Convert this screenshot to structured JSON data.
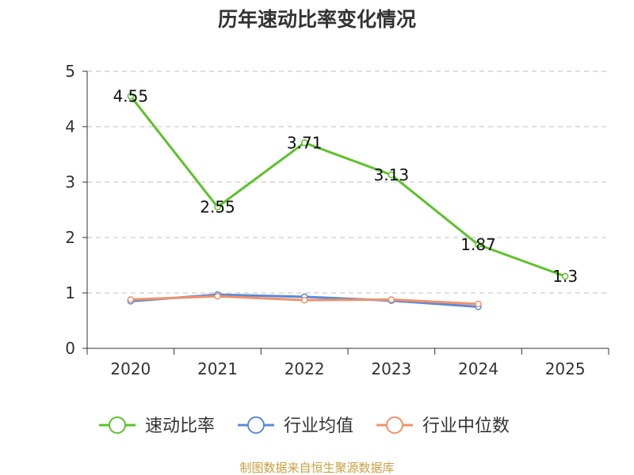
{
  "chart_data": {
    "type": "line",
    "title": "历年速动比率变化情况",
    "categories": [
      "2020",
      "2021",
      "2022",
      "2023",
      "2024",
      "2025"
    ],
    "ylim": [
      0,
      5
    ],
    "yticks": [
      0,
      1,
      2,
      3,
      4,
      5
    ],
    "grid": true,
    "legend_position": "bottom",
    "series": [
      {
        "name": "速动比率",
        "color": "#5cc22a",
        "values": [
          4.55,
          2.55,
          3.71,
          3.13,
          1.87,
          1.3
        ],
        "show_labels": true
      },
      {
        "name": "行业均值",
        "color": "#5b8ad8",
        "values": [
          0.85,
          0.97,
          0.93,
          0.86,
          0.75,
          null
        ],
        "show_labels": false
      },
      {
        "name": "行业中位数",
        "color": "#f0926a",
        "values": [
          0.88,
          0.94,
          0.87,
          0.88,
          0.8,
          null
        ],
        "show_labels": false
      }
    ]
  },
  "footer": {
    "source": "制图数据来自恒生聚源数据库"
  }
}
